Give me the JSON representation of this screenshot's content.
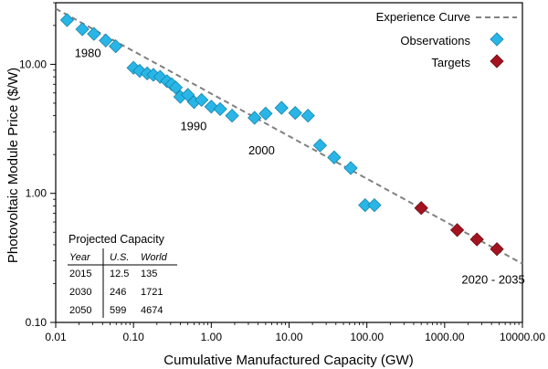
{
  "chart_data": {
    "type": "scatter",
    "xscale": "log",
    "yscale": "log",
    "xlabel": "Cumulative Manufactured Capacity (GW)",
    "ylabel": "Photovoltaic Module Price ($/W)",
    "xlim": [
      0.01,
      10000
    ],
    "ylim": [
      0.1,
      30
    ],
    "xticks": [
      0.01,
      0.1,
      1,
      10,
      100,
      1000,
      10000
    ],
    "xtick_labels": [
      "0.01",
      "0.10",
      "1.00",
      "10.00",
      "100.00",
      "1000.00",
      "10000.00"
    ],
    "yticks": [
      0.1,
      1,
      10
    ],
    "ytick_labels": [
      "0.10",
      "1.00",
      "10.00"
    ],
    "legend": [
      {
        "label": "Experience Curve",
        "kind": "line",
        "color": "#808080"
      },
      {
        "label": "Observations",
        "kind": "marker",
        "color": "#29b6e6"
      },
      {
        "label": "Targets",
        "kind": "marker",
        "color": "#a31420"
      }
    ],
    "curve": {
      "name": "Experience Curve",
      "points": [
        [
          0.01,
          27
        ],
        [
          10000,
          0.285
        ]
      ],
      "color": "#808080"
    },
    "series": [
      {
        "name": "Observations",
        "color": "#29b6e6",
        "points": [
          [
            0.014,
            22
          ],
          [
            0.022,
            18.7
          ],
          [
            0.031,
            17.2
          ],
          [
            0.044,
            15.3
          ],
          [
            0.059,
            13.8
          ],
          [
            0.1,
            9.4
          ],
          [
            0.12,
            8.9
          ],
          [
            0.15,
            8.5
          ],
          [
            0.18,
            8.3
          ],
          [
            0.22,
            8.0
          ],
          [
            0.27,
            7.4
          ],
          [
            0.31,
            7.0
          ],
          [
            0.35,
            6.6
          ],
          [
            0.4,
            5.6
          ],
          [
            0.5,
            5.8
          ],
          [
            0.6,
            5.1
          ],
          [
            0.75,
            5.3
          ],
          [
            1.0,
            4.7
          ],
          [
            1.3,
            4.5
          ],
          [
            1.85,
            4.0
          ],
          [
            3.6,
            3.85
          ],
          [
            5.0,
            4.15
          ],
          [
            8.0,
            4.6
          ],
          [
            12.0,
            4.2
          ],
          [
            17.5,
            4.0
          ],
          [
            25,
            2.35
          ],
          [
            38,
            1.9
          ],
          [
            62,
            1.57
          ],
          [
            95,
            0.81
          ],
          [
            125,
            0.81
          ]
        ]
      },
      {
        "name": "Targets",
        "color": "#a31420",
        "points": [
          [
            500,
            0.77
          ],
          [
            1450,
            0.52
          ],
          [
            2600,
            0.44
          ],
          [
            4700,
            0.37
          ]
        ]
      }
    ],
    "annotations": [
      {
        "text": "1980",
        "x": 0.0175,
        "y": 11.4
      },
      {
        "text": "1990",
        "x": 0.4,
        "y": 3.1
      },
      {
        "text": "2000",
        "x": 3.0,
        "y": 2.0
      },
      {
        "text": "2020 - 2035",
        "x": 1650,
        "y": 0.2
      }
    ]
  },
  "projected": {
    "title": "Projected Capacity",
    "headers": [
      "Year",
      "U.S.",
      "World"
    ],
    "rows": [
      [
        "2015",
        "12.5",
        "135"
      ],
      [
        "2030",
        "246",
        "1721"
      ],
      [
        "2050",
        "599",
        "4674"
      ]
    ]
  }
}
